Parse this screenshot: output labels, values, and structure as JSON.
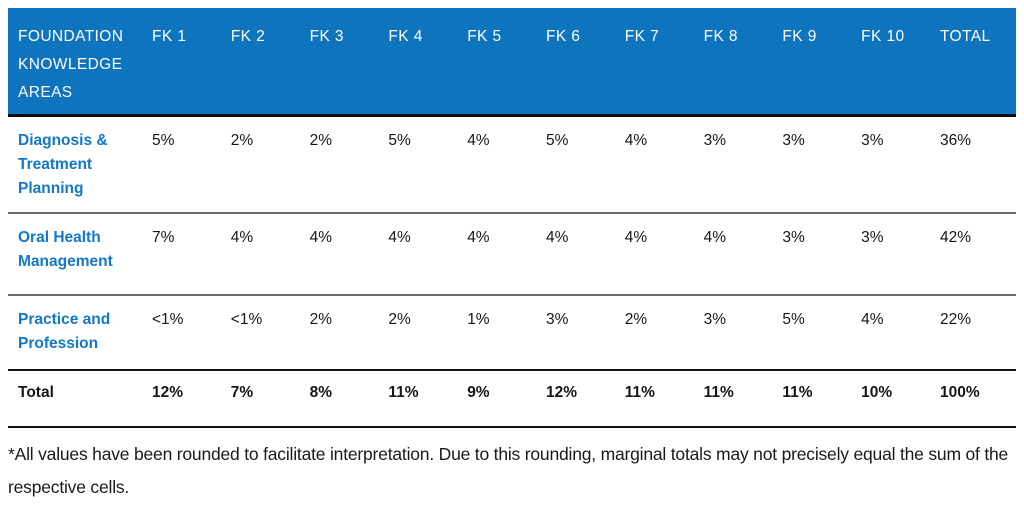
{
  "table": {
    "header": {
      "area_label": "FOUNDATION KNOWLEDGE AREAS",
      "columns": [
        "FK 1",
        "FK 2",
        "FK 3",
        "FK 4",
        "FK 5",
        "FK 6",
        "FK 7",
        "FK 8",
        "FK 9",
        "FK 10",
        "TOTAL"
      ]
    },
    "rows": [
      {
        "label": "Diagnosis & Treatment Planning",
        "values": [
          "5%",
          "2%",
          "2%",
          "5%",
          "4%",
          "5%",
          "4%",
          "3%",
          "3%",
          "3%",
          "36%"
        ]
      },
      {
        "label": "Oral Health Management",
        "values": [
          "7%",
          "4%",
          "4%",
          "4%",
          "4%",
          "4%",
          "4%",
          "4%",
          "3%",
          "3%",
          "42%"
        ]
      },
      {
        "label": "Practice and Profession",
        "values": [
          "<1%",
          "<1%",
          "2%",
          "2%",
          "1%",
          "3%",
          "2%",
          "3%",
          "5%",
          "4%",
          "22%"
        ]
      }
    ],
    "total_row": {
      "label": "Total",
      "values": [
        "12%",
        "7%",
        "8%",
        "11%",
        "9%",
        "12%",
        "11%",
        "11%",
        "11%",
        "10%",
        "100%"
      ]
    }
  },
  "footnote": "*All values have been rounded to facilitate interpretation. Due to this rounding, marginal totals may not precisely equal the sum of the respective cells.",
  "colors": {
    "header_bg": "#0E74BD",
    "row_label_blue": "#1278C8",
    "separator_gray": "#6b6b6b",
    "strong_line": "#141414"
  }
}
